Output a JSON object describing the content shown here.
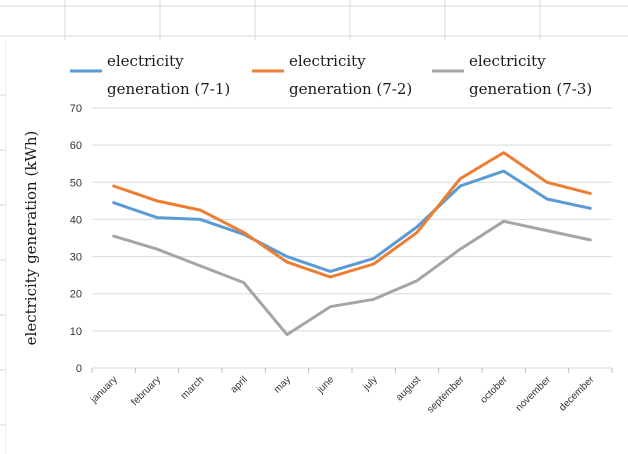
{
  "chart_data": {
    "type": "line",
    "categories": [
      "january",
      "february",
      "march",
      "april",
      "may",
      "june",
      "july",
      "august",
      "september",
      "october",
      "november",
      "december"
    ],
    "series": [
      {
        "name": "electricity generation (7-1)",
        "label_lines": [
          "electricity",
          "generation (7-1)"
        ],
        "color": "#5b9bd5",
        "values": [
          44.5,
          40.5,
          40,
          36,
          30,
          26,
          29.5,
          38,
          49,
          53,
          45.5,
          43
        ]
      },
      {
        "name": "electricity generation (7-2)",
        "label_lines": [
          "electricity",
          "generation (7-2)"
        ],
        "color": "#ed7d31",
        "values": [
          49,
          45,
          42.5,
          36.5,
          28.5,
          24.5,
          28,
          36.5,
          51,
          58,
          50,
          47
        ]
      },
      {
        "name": "electricity generation (7-3)",
        "label_lines": [
          "electricity",
          "generation (7-3)"
        ],
        "color": "#a5a5a5",
        "values": [
          35.5,
          32,
          27.5,
          23,
          9,
          16.5,
          18.5,
          23.5,
          32,
          39.5,
          37,
          34.5
        ]
      }
    ],
    "yticks": [
      0,
      10,
      20,
      30,
      40,
      50,
      60,
      70
    ],
    "ylim": [
      0,
      70
    ],
    "ylabel": "electricity generation (kWh)",
    "xlabel": "",
    "title": "",
    "grid": "horizontal",
    "legend": "top"
  }
}
